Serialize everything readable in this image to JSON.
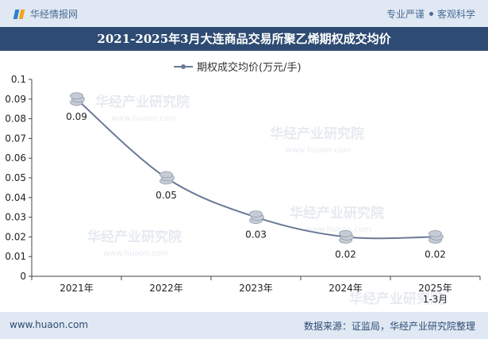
{
  "header": {
    "brand": "华经情报网",
    "tag1": "专业严谨",
    "tag2": "客观科学"
  },
  "title": "2021-2025年3月大连商品交易所聚乙烯期权成交均价",
  "watermark": {
    "cn": "华经产业研究院",
    "url": "www.huaon.com"
  },
  "footer": {
    "site": "www.huaon.com",
    "source": "数据来源：证监局，华经产业研究院整理"
  },
  "colors": {
    "line": "#6a7a95",
    "marker": "#c6ccd6",
    "header_bg": "#dfe8f3",
    "title_bg": "#2e4b73"
  },
  "chart_data": {
    "type": "line",
    "title": "2021-2025年3月大连商品交易所聚乙烯期权成交均价",
    "categories": [
      "2021年",
      "2022年",
      "2023年",
      "2024年",
      "2025年\n1-3月"
    ],
    "series": [
      {
        "name": "期权成交均价(万元/手)",
        "values": [
          0.09,
          0.05,
          0.03,
          0.02,
          0.02
        ]
      }
    ],
    "data_labels": [
      "0.09",
      "0.05",
      "0.03",
      "0.02",
      "0.02"
    ],
    "yticks": [
      "0",
      "0.01",
      "0.02",
      "0.03",
      "0.04",
      "0.05",
      "0.06",
      "0.07",
      "0.08",
      "0.09",
      "0.1"
    ],
    "ylim": [
      0,
      0.1
    ],
    "legend": "top-center",
    "xlabel": "",
    "ylabel": ""
  }
}
